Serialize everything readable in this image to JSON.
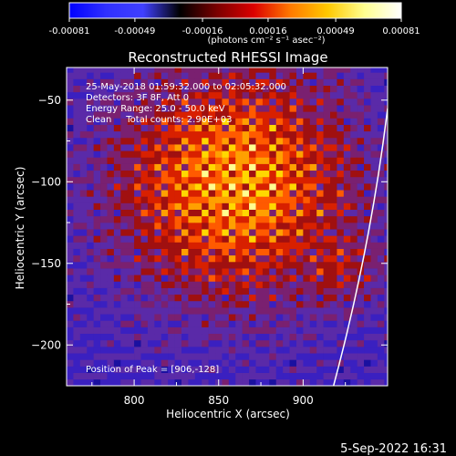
{
  "colorbar": {
    "tick_labels": [
      "-0.00081",
      "-0.00049",
      "-0.00016",
      "0.00016",
      "0.00049",
      "0.00081"
    ],
    "tick_values": [
      -0.00081,
      -0.00049,
      -0.00016,
      0.00016,
      0.00049,
      0.00081
    ],
    "range": [
      -0.00081,
      0.00081
    ],
    "unit_label": "(photons cm⁻² s⁻¹ asec⁻²)",
    "colors": [
      "#0000ff",
      "#3030ff",
      "#4040ff",
      "#000000",
      "#7a0000",
      "#dc0000",
      "#ff7a00",
      "#ffc800",
      "#ffff90",
      "#ffffff"
    ]
  },
  "chart_data": {
    "type": "heatmap",
    "title": "Reconstructed RHESSI Image",
    "xlabel": "Heliocentric X (arcsec)",
    "ylabel": "Heliocentric Y (arcsec)",
    "xlim": [
      760,
      950
    ],
    "ylim": [
      -225,
      -30
    ],
    "x_ticks": [
      800,
      850,
      900
    ],
    "y_ticks": [
      -50,
      -100,
      -150,
      -200
    ],
    "x_tick_labels": [
      "800",
      "850",
      "900"
    ],
    "y_tick_labels": [
      "−50",
      "−100",
      "−150",
      "−200"
    ],
    "annotations": [
      "25-May-2018 01:59:32.000 to 02:05:32.000",
      "Detectors: 3F 8F, Att 0",
      "Energy Range: 25.0 - 50.0 keV",
      "Clean     Total counts: 2.90E+03"
    ],
    "peak_label": "Position of Peak = [906,-128]",
    "peak_position": [
      906,
      -128
    ],
    "limb_curve": [
      [
        950,
        -55
      ],
      [
        918,
        -225
      ]
    ],
    "heatmap_colors": [
      "#1a10a0",
      "#3a20c0",
      "#5a2aa8",
      "#7a2070",
      "#a01010",
      "#d82000",
      "#ff5a00",
      "#ffa000",
      "#ffd800",
      "#ffff90"
    ]
  },
  "footer": {
    "timestamp": "5-Sep-2022 16:31"
  }
}
